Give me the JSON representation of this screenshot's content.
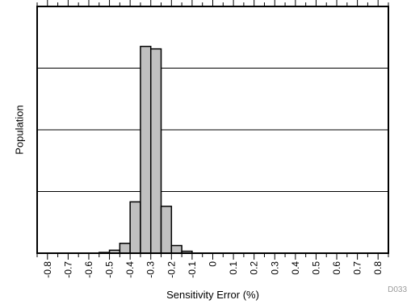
{
  "chart_data": {
    "type": "bar",
    "title": "",
    "xlabel": "Sensitivity Error (%)",
    "ylabel": "Population",
    "xlim": [
      -0.85,
      0.85
    ],
    "ylim": [
      0,
      100
    ],
    "y_tick_labels_shown": false,
    "grid": "horizontal",
    "x_ticks": [
      -0.8,
      -0.7,
      -0.6,
      -0.5,
      -0.4,
      -0.3,
      -0.2,
      -0.1,
      0,
      0.1,
      0.2,
      0.3,
      0.4,
      0.5,
      0.6,
      0.7,
      0.8
    ],
    "x_tick_labels": [
      "-0.8",
      "-0.7",
      "-0.6",
      "-0.5",
      "-0.4",
      "-0.3",
      "-0.2",
      "-0.1",
      "0",
      "0.1",
      "0.2",
      "0.3",
      "0.4",
      "0.5",
      "0.6",
      "0.7",
      "0.8"
    ],
    "bin_width": 0.05,
    "bins": [
      {
        "x": -0.525,
        "value": 0.3
      },
      {
        "x": -0.475,
        "value": 1.2
      },
      {
        "x": -0.425,
        "value": 4.0
      },
      {
        "x": -0.375,
        "value": 20.8
      },
      {
        "x": -0.325,
        "value": 83.8
      },
      {
        "x": -0.275,
        "value": 82.8
      },
      {
        "x": -0.225,
        "value": 19.0
      },
      {
        "x": -0.175,
        "value": 3.1
      },
      {
        "x": -0.125,
        "value": 0.8
      }
    ],
    "bar_color": "#c0c0c0",
    "bar_edge_color": "#000000",
    "figure_code": "D033"
  }
}
